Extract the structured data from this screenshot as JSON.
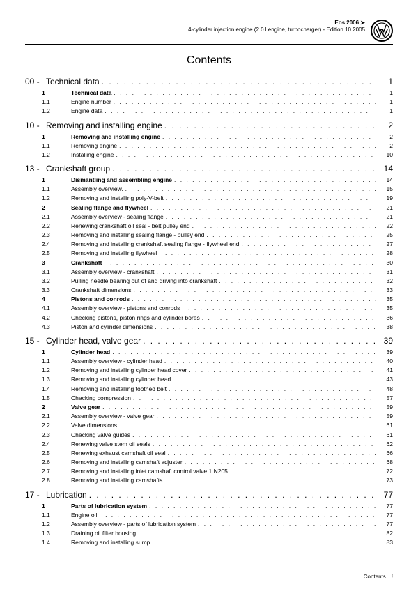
{
  "header": {
    "model": "Eos 2006 ➤",
    "subtitle": "4-cylinder injection engine (2.0 l engine, turbocharger) - Edition 10.2005"
  },
  "contents_title": "Contents",
  "sections": [
    {
      "num": "00 -",
      "title": "Technical data",
      "page": "1",
      "items": [
        {
          "num": "1",
          "title": "Technical data",
          "page": "1",
          "bold": true
        },
        {
          "num": "1.1",
          "title": "Engine number",
          "page": "1",
          "bold": false
        },
        {
          "num": "1.2",
          "title": "Engine data",
          "page": "1",
          "bold": false
        }
      ]
    },
    {
      "num": "10 -",
      "title": "Removing and installing engine",
      "page": "2",
      "items": [
        {
          "num": "1",
          "title": "Removing and installing engine",
          "page": "2",
          "bold": true
        },
        {
          "num": "1.1",
          "title": "Removing engine",
          "page": "2",
          "bold": false
        },
        {
          "num": "1.2",
          "title": "Installing engine",
          "page": "10",
          "bold": false
        }
      ]
    },
    {
      "num": "13 -",
      "title": "Crankshaft group",
      "page": "14",
      "items": [
        {
          "num": "1",
          "title": "Dismantling and assembling engine",
          "page": "14",
          "bold": true
        },
        {
          "num": "1.1",
          "title": "Assembly overview.",
          "page": "15",
          "bold": false
        },
        {
          "num": "1.2",
          "title": "Removing and installing poly-V-belt",
          "page": "19",
          "bold": false
        },
        {
          "num": "2",
          "title": "Sealing flange and flywheel",
          "page": "21",
          "bold": true
        },
        {
          "num": "2.1",
          "title": "Assembly overview - sealing flange",
          "page": "21",
          "bold": false
        },
        {
          "num": "2.2",
          "title": "Renewing crankshaft oil seal - belt pulley end",
          "page": "22",
          "bold": false
        },
        {
          "num": "2.3",
          "title": "Removing and installing sealing flange - pulley end",
          "page": "25",
          "bold": false
        },
        {
          "num": "2.4",
          "title": "Removing and installing crankshaft sealing flange - flywheel end",
          "page": "27",
          "bold": false
        },
        {
          "num": "2.5",
          "title": "Removing and installing flywheel",
          "page": "28",
          "bold": false
        },
        {
          "num": "3",
          "title": "Crankshaft",
          "page": "30",
          "bold": true
        },
        {
          "num": "3.1",
          "title": "Assembly overview - crankshaft",
          "page": "31",
          "bold": false
        },
        {
          "num": "3.2",
          "title": "Pulling needle bearing out of and driving into crankshaft",
          "page": "32",
          "bold": false
        },
        {
          "num": "3.3",
          "title": "Crankshaft dimensions",
          "page": "33",
          "bold": false
        },
        {
          "num": "4",
          "title": "Pistons and conrods",
          "page": "35",
          "bold": true
        },
        {
          "num": "4.1",
          "title": "Assembly overview - pistons and conrods",
          "page": "35",
          "bold": false
        },
        {
          "num": "4.2",
          "title": "Checking pistons, piston rings and cylinder bores",
          "page": "36",
          "bold": false
        },
        {
          "num": "4.3",
          "title": "Piston and cylinder dimensions",
          "page": "38",
          "bold": false
        }
      ]
    },
    {
      "num": "15 -",
      "title": "Cylinder head, valve gear",
      "page": "39",
      "items": [
        {
          "num": "1",
          "title": "Cylinder head",
          "page": "39",
          "bold": true
        },
        {
          "num": "1.1",
          "title": "Assembly overview - cylinder head",
          "page": "40",
          "bold": false
        },
        {
          "num": "1.2",
          "title": "Removing and installing cylinder head cover",
          "page": "41",
          "bold": false
        },
        {
          "num": "1.3",
          "title": "Removing and installing cylinder head",
          "page": "43",
          "bold": false
        },
        {
          "num": "1.4",
          "title": "Removing and installing toothed belt",
          "page": "48",
          "bold": false
        },
        {
          "num": "1.5",
          "title": "Checking compression",
          "page": "57",
          "bold": false
        },
        {
          "num": "2",
          "title": "Valve gear",
          "page": "59",
          "bold": true
        },
        {
          "num": "2.1",
          "title": "Assembly overview - valve gear",
          "page": "59",
          "bold": false
        },
        {
          "num": "2.2",
          "title": "Valve dimensions",
          "page": "61",
          "bold": false
        },
        {
          "num": "2.3",
          "title": "Checking valve guides",
          "page": "61",
          "bold": false
        },
        {
          "num": "2.4",
          "title": "Renewing valve stem oil seals",
          "page": "62",
          "bold": false
        },
        {
          "num": "2.5",
          "title": "Renewing exhaust camshaft oil seal",
          "page": "66",
          "bold": false
        },
        {
          "num": "2.6",
          "title": "Removing and installing camshaft adjuster",
          "page": "68",
          "bold": false
        },
        {
          "num": "2.7",
          "title": "Removing and installing inlet camshaft control valve 1 N205",
          "page": "72",
          "bold": false
        },
        {
          "num": "2.8",
          "title": "Removing and installing camshafts",
          "page": "73",
          "bold": false
        }
      ]
    },
    {
      "num": "17 -",
      "title": "Lubrication",
      "page": "77",
      "items": [
        {
          "num": "1",
          "title": "Parts of lubrication system",
          "page": "77",
          "bold": true
        },
        {
          "num": "1.1",
          "title": "Engine oil",
          "page": "77",
          "bold": false
        },
        {
          "num": "1.2",
          "title": "Assembly overview - parts of lubrication system",
          "page": "77",
          "bold": false
        },
        {
          "num": "1.3",
          "title": "Draining oil filter housing",
          "page": "82",
          "bold": false
        },
        {
          "num": "1.4",
          "title": "Removing and installing sump",
          "page": "83",
          "bold": false
        }
      ]
    }
  ],
  "footer": {
    "label": "Contents",
    "page_num": "i"
  },
  "dots": ". . . . . . . . . . . . . . . . . . . . . . . . . . . . . . . . . . . . . . . . . . . . . . . . . . . . . . . . . . . . . . . . . . . . . . . . . . . . . . . . . . . . . . . . . . . . . . . . . . . ."
}
